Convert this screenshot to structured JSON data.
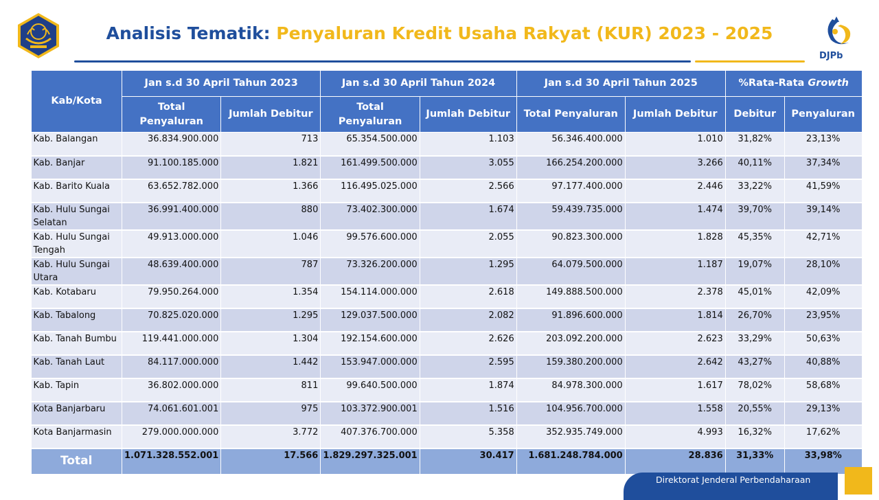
{
  "title": {
    "part1": "Analisis Tematik:",
    "part2": "Penyaluran Kredit Usaha Rakyat (KUR) 2023 - 2025"
  },
  "logo_right_text": "DJPb",
  "footer_text": "Direktorat Jenderal Perbendaharaan",
  "colors": {
    "title_blue": "#1f4e9c",
    "title_yellow": "#f1b81b",
    "header_blue": "#4472c4",
    "row_light": "#e9ecf6",
    "row_dark": "#cfd5ea",
    "total_row": "#8eaadb"
  },
  "table": {
    "header": {
      "kab_kota": "Kab/Kota",
      "group_2023": "Jan s.d 30 April Tahun 2023",
      "group_2024": "Jan s.d 30 April Tahun 2024",
      "group_2025": "Jan s.d 30 April Tahun 2025",
      "group_growth_prefix": "%Rata-Rata ",
      "group_growth_italic": "Growth",
      "total_penyaluran_2023": "Total Penyaluran",
      "jumlah_debitur_2023": "Jumlah Debitur",
      "total_penyaluran_2024": "Total Penyaluran",
      "jumlah_debitur_2024": "Jumlah Debitur",
      "total_penyaluran_2025": "Total Penyaluran",
      "jumlah_debitur_2025": "Jumlah Debitur",
      "growth_debitur": "Debitur",
      "growth_penyaluran": "Penyaluran"
    },
    "rows": [
      {
        "name": "Kab. Balangan",
        "tp2023": "36.834.900.000",
        "jd2023": "713",
        "tp2024": "65.354.500.000",
        "jd2024": "1.103",
        "tp2025": "56.346.400.000",
        "jd2025": "1.010",
        "g_deb": "31,82%",
        "g_pen": "23,13%"
      },
      {
        "name": "Kab. Banjar",
        "tp2023": "91.100.185.000",
        "jd2023": "1.821",
        "tp2024": "161.499.500.000",
        "jd2024": "3.055",
        "tp2025": "166.254.200.000",
        "jd2025": "3.266",
        "g_deb": "40,11%",
        "g_pen": "37,34%"
      },
      {
        "name": "Kab. Barito Kuala",
        "tp2023": "63.652.782.000",
        "jd2023": "1.366",
        "tp2024": "116.495.025.000",
        "jd2024": "2.566",
        "tp2025": "97.177.400.000",
        "jd2025": "2.446",
        "g_deb": "33,22%",
        "g_pen": "41,59%"
      },
      {
        "name": "Kab. Hulu Sungai Selatan",
        "tp2023": "36.991.400.000",
        "jd2023": "880",
        "tp2024": "73.402.300.000",
        "jd2024": "1.674",
        "tp2025": "59.439.735.000",
        "jd2025": "1.474",
        "g_deb": "39,70%",
        "g_pen": "39,14%"
      },
      {
        "name": "Kab. Hulu Sungai Tengah",
        "tp2023": "49.913.000.000",
        "jd2023": "1.046",
        "tp2024": "99.576.600.000",
        "jd2024": "2.055",
        "tp2025": "90.823.300.000",
        "jd2025": "1.828",
        "g_deb": "45,35%",
        "g_pen": "42,71%"
      },
      {
        "name": "Kab. Hulu Sungai Utara",
        "tp2023": "48.639.400.000",
        "jd2023": "787",
        "tp2024": "73.326.200.000",
        "jd2024": "1.295",
        "tp2025": "64.079.500.000",
        "jd2025": "1.187",
        "g_deb": "19,07%",
        "g_pen": "28,10%"
      },
      {
        "name": "Kab. Kotabaru",
        "tp2023": "79.950.264.000",
        "jd2023": "1.354",
        "tp2024": "154.114.000.000",
        "jd2024": "2.618",
        "tp2025": "149.888.500.000",
        "jd2025": "2.378",
        "g_deb": "45,01%",
        "g_pen": "42,09%"
      },
      {
        "name": "Kab. Tabalong",
        "tp2023": "70.825.020.000",
        "jd2023": "1.295",
        "tp2024": "129.037.500.000",
        "jd2024": "2.082",
        "tp2025": "91.896.600.000",
        "jd2025": "1.814",
        "g_deb": "26,70%",
        "g_pen": "23,95%"
      },
      {
        "name": "Kab. Tanah Bumbu",
        "tp2023": "119.441.000.000",
        "jd2023": "1.304",
        "tp2024": "192.154.600.000",
        "jd2024": "2.626",
        "tp2025": "203.092.200.000",
        "jd2025": "2.623",
        "g_deb": "33,29%",
        "g_pen": "50,63%"
      },
      {
        "name": "Kab. Tanah Laut",
        "tp2023": "84.117.000.000",
        "jd2023": "1.442",
        "tp2024": "153.947.000.000",
        "jd2024": "2.595",
        "tp2025": "159.380.200.000",
        "jd2025": "2.642",
        "g_deb": "43,27%",
        "g_pen": "40,88%"
      },
      {
        "name": "Kab. Tapin",
        "tp2023": "36.802.000.000",
        "jd2023": "811",
        "tp2024": "99.640.500.000",
        "jd2024": "1.874",
        "tp2025": "84.978.300.000",
        "jd2025": "1.617",
        "g_deb": "78,02%",
        "g_pen": "58,68%"
      },
      {
        "name": "Kota Banjarbaru",
        "tp2023": "74.061.601.001",
        "jd2023": "975",
        "tp2024": "103.372.900.001",
        "jd2024": "1.516",
        "tp2025": "104.956.700.000",
        "jd2025": "1.558",
        "g_deb": "20,55%",
        "g_pen": "29,13%"
      },
      {
        "name": "Kota Banjarmasin",
        "tp2023": "279.000.000.000",
        "jd2023": "3.772",
        "tp2024": "407.376.700.000",
        "jd2024": "5.358",
        "tp2025": "352.935.749.000",
        "jd2025": "4.993",
        "g_deb": "16,32%",
        "g_pen": "17,62%"
      }
    ],
    "total": {
      "name": "Total",
      "tp2023": "1.071.328.552.001",
      "jd2023": "17.566",
      "tp2024": "1.829.297.325.001",
      "jd2024": "30.417",
      "tp2025": "1.681.248.784.000",
      "jd2025": "28.836",
      "g_deb": "31,33%",
      "g_pen": "33,98%"
    }
  }
}
